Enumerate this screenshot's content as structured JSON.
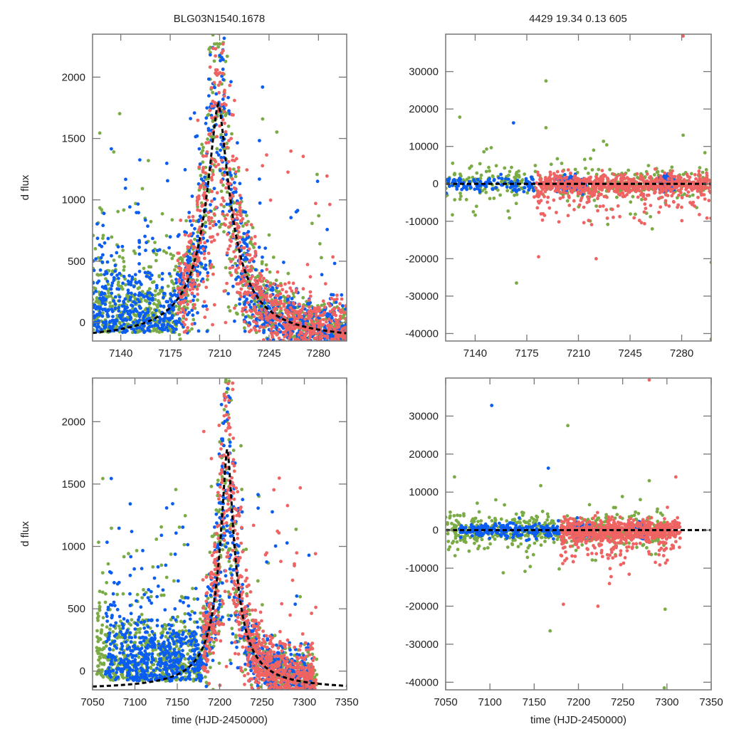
{
  "figure": {
    "left_title": "BLG03N1540.1678",
    "right_title": "4429  19.34  0.13  605"
  },
  "chart_data": [
    {
      "id": "top-left",
      "type": "scatter",
      "title": "BLG03N1540.1678",
      "xlabel": "",
      "ylabel": "d flux",
      "xlim": [
        7120,
        7300
      ],
      "ylim": [
        -150,
        2350
      ],
      "xticks": [
        7140,
        7175,
        7210,
        7245,
        7280
      ],
      "yticks": [
        0,
        500,
        1000,
        1500,
        2000
      ],
      "grid": false,
      "series": [
        {
          "name": "green",
          "color": "#7aab45",
          "t_range": [
            7120,
            7300
          ],
          "peak": 7208
        },
        {
          "name": "blue",
          "color": "#0b5df2",
          "t_range": [
            7120,
            7300
          ],
          "peak": 7208
        },
        {
          "name": "red",
          "color": "#ef6363",
          "t_range": [
            7180,
            7300
          ],
          "peak": 7208
        }
      ],
      "model": {
        "name": "model fit",
        "style": "dashed",
        "color": "#000000",
        "t0": 7209,
        "peak_flux": 1780,
        "width": 11,
        "baseline": -150
      }
    },
    {
      "id": "top-right",
      "type": "scatter",
      "title": "4429  19.34  0.13  605",
      "xlabel": "",
      "ylabel": "",
      "xlim": [
        7120,
        7300
      ],
      "ylim": [
        -42000,
        40000
      ],
      "xticks": [
        7140,
        7175,
        7210,
        7245,
        7280
      ],
      "yticks": [
        -40000,
        -30000,
        -20000,
        -10000,
        0,
        10000,
        20000,
        30000
      ],
      "grid": false,
      "series": [
        {
          "name": "green",
          "color": "#7aab45"
        },
        {
          "name": "blue",
          "color": "#0b5df2"
        },
        {
          "name": "red",
          "color": "#ef6363"
        }
      ],
      "outliers": [
        {
          "series": "green",
          "x": 7188,
          "y": 27500
        },
        {
          "series": "blue",
          "x": 7166,
          "y": 16300
        },
        {
          "series": "green",
          "x": 7168,
          "y": -26500
        },
        {
          "series": "red",
          "x": 7183,
          "y": -19500
        },
        {
          "series": "red",
          "x": 7222,
          "y": -20000
        },
        {
          "series": "red",
          "x": 7281,
          "y": 39500
        },
        {
          "series": "green",
          "x": 7300,
          "y": -41500
        },
        {
          "series": "green",
          "x": 7300,
          "y": -21000
        },
        {
          "series": "green",
          "x": 7188,
          "y": 15000
        },
        {
          "series": "green",
          "x": 7281,
          "y": 13000
        }
      ]
    },
    {
      "id": "bottom-left",
      "type": "scatter",
      "title": "",
      "xlabel": "time (HJD-2450000)",
      "ylabel": "d flux",
      "xlim": [
        7050,
        7350
      ],
      "ylim": [
        -150,
        2350
      ],
      "xticks": [
        7050,
        7100,
        7150,
        7200,
        7250,
        7300,
        7350
      ],
      "yticks": [
        0,
        500,
        1000,
        1500,
        2000
      ],
      "grid": false,
      "series": [
        {
          "name": "green",
          "color": "#7aab45",
          "t_range": [
            7055,
            7315
          ],
          "peak": 7208
        },
        {
          "name": "blue",
          "color": "#0b5df2",
          "t_range": [
            7065,
            7310
          ],
          "peak": 7208
        },
        {
          "name": "red",
          "color": "#ef6363",
          "t_range": [
            7180,
            7315
          ],
          "peak": 7208
        }
      ],
      "model": {
        "name": "model fit",
        "style": "dashed",
        "color": "#000000",
        "t0": 7209,
        "peak_flux": 1780,
        "width": 11,
        "baseline": -150
      }
    },
    {
      "id": "bottom-right",
      "type": "scatter",
      "title": "",
      "xlabel": "time (HJD-2450000)",
      "ylabel": "",
      "xlim": [
        7050,
        7350
      ],
      "ylim": [
        -42000,
        40000
      ],
      "xticks": [
        7050,
        7100,
        7150,
        7200,
        7250,
        7300,
        7350
      ],
      "yticks": [
        -40000,
        -30000,
        -20000,
        -10000,
        0,
        10000,
        20000,
        30000
      ],
      "grid": false,
      "series": [
        {
          "name": "green",
          "color": "#7aab45"
        },
        {
          "name": "blue",
          "color": "#0b5df2"
        },
        {
          "name": "red",
          "color": "#ef6363"
        }
      ],
      "outliers": [
        {
          "series": "blue",
          "x": 7102,
          "y": 32800
        },
        {
          "series": "green",
          "x": 7188,
          "y": 27500
        },
        {
          "series": "blue",
          "x": 7166,
          "y": 16300
        },
        {
          "series": "green",
          "x": 7168,
          "y": -26500
        },
        {
          "series": "red",
          "x": 7183,
          "y": -19500
        },
        {
          "series": "red",
          "x": 7222,
          "y": -20000
        },
        {
          "series": "red",
          "x": 7280,
          "y": 39500
        },
        {
          "series": "green",
          "x": 7298,
          "y": -20800
        },
        {
          "series": "green",
          "x": 7297,
          "y": -41500
        },
        {
          "series": "red",
          "x": 7310,
          "y": 14000
        },
        {
          "series": "green",
          "x": 7060,
          "y": 14000
        },
        {
          "series": "green",
          "x": 7280,
          "y": 13000
        }
      ]
    }
  ]
}
